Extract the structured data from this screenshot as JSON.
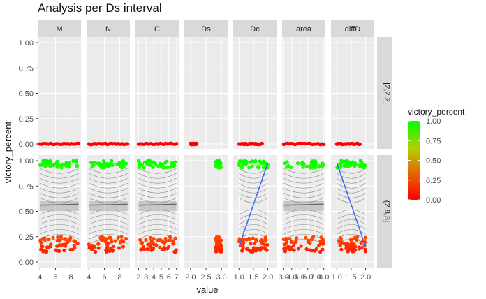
{
  "chart_data": {
    "type": "scatter",
    "title": "Analysis per Ds interval",
    "xlabel": "value",
    "ylabel": "victory_percent",
    "ylim": [
      0,
      1
    ],
    "y_ticks": [
      "0.00",
      "0.25",
      "0.50",
      "0.75",
      "1.00"
    ],
    "facet_columns": [
      "M",
      "N",
      "C",
      "Ds",
      "Dc",
      "area",
      "diffD"
    ],
    "facet_rows": [
      "[2,2.2]",
      "(2.8,3]"
    ],
    "panel_x_ticks": {
      "M": [
        "4",
        "6",
        "8"
      ],
      "N": [
        "4",
        "6",
        "8"
      ],
      "C": [
        "2",
        "3",
        "4",
        "5",
        "6",
        "7"
      ],
      "Ds": [
        "2.0",
        "2.5",
        "3.0"
      ],
      "Dc": [
        "1.0",
        "1.5",
        "2.0"
      ],
      "area": [
        "3.0",
        "4.0",
        "5.0",
        "6.0",
        "7.0",
        "8.0"
      ],
      "diffD": [
        "1.0",
        "1.5",
        "2.0"
      ]
    },
    "x_ranges": {
      "M": [
        3.7,
        9.3
      ],
      "N": [
        3.7,
        9.3
      ],
      "C": [
        1.6,
        7.3
      ],
      "Ds": [
        1.8,
        3.2
      ],
      "Dc": [
        0.8,
        2.3
      ],
      "area": [
        2.8,
        8.2
      ],
      "diffD": [
        0.8,
        2.3
      ]
    },
    "point_x_spans": {
      "M": [
        4,
        9
      ],
      "N": [
        4,
        9
      ],
      "C": [
        2,
        7
      ],
      "Ds": [
        2.0,
        2.2
      ],
      "Dc": [
        1.0,
        1.8
      ],
      "area": [
        3.0,
        8.0
      ],
      "diffD": [
        1.0,
        1.8
      ]
    },
    "bottom_row_x_spans": {
      "Ds": [
        2.8,
        3.0
      ],
      "Dc": [
        1.0,
        2.0
      ],
      "diffD": [
        1.0,
        2.0
      ]
    },
    "row_points": {
      "[2,2.2]": {
        "victory_percent_cluster": [
          0.0
        ]
      },
      "(2.8,3]": {
        "victory_percent_clusters": [
          [
            0.93,
            1.0
          ],
          [
            0.1,
            0.25
          ]
        ]
      }
    },
    "trend_lines": {
      "Dc": {
        "x": [
          1.0,
          2.0
        ],
        "y": [
          0.15,
          0.98
        ]
      },
      "diffD": {
        "x": [
          1.0,
          2.0
        ],
        "y": [
          0.98,
          0.15
        ]
      }
    },
    "legend": {
      "title": "victory_percent",
      "labels": [
        "1.00",
        "0.75",
        "0.50",
        "0.25",
        "0.00"
      ],
      "colors": [
        "#00ff00",
        "#ff0000"
      ],
      "placement": "right"
    },
    "colors": {
      "panel_bg": "#ebebeb",
      "strip_bg": "#d9d9d9",
      "grid": "#ffffff",
      "trend": "#3366ff",
      "contour": "#555555"
    }
  }
}
